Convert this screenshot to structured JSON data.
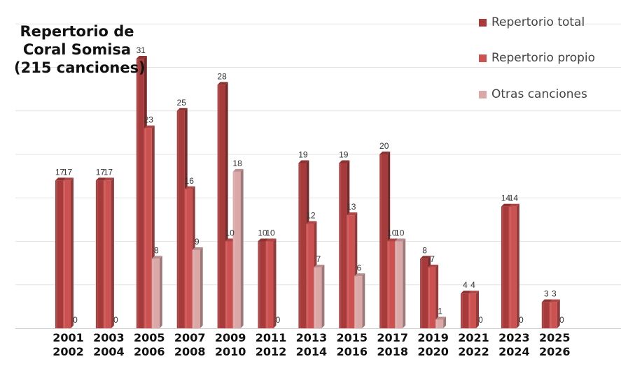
{
  "chart_data": {
    "type": "bar",
    "title_lines": [
      "Repertorio de",
      "Coral Somisa",
      "(215 canciones)"
    ],
    "categories": [
      [
        "2001",
        "2002"
      ],
      [
        "2003",
        "2004"
      ],
      [
        "2005",
        "2006"
      ],
      [
        "2007",
        "2008"
      ],
      [
        "2009",
        "2010"
      ],
      [
        "2011",
        "2012"
      ],
      [
        "2013",
        "2014"
      ],
      [
        "2015",
        "2016"
      ],
      [
        "2017",
        "2018"
      ],
      [
        "2019",
        "2020"
      ],
      [
        "2021",
        "2022"
      ],
      [
        "2023",
        "2024"
      ],
      [
        "2025",
        "2026"
      ]
    ],
    "series": [
      {
        "name": "Repertorio total",
        "color": "#a73a3a",
        "values": [
          17,
          17,
          31,
          25,
          28,
          10,
          19,
          19,
          20,
          8,
          4,
          14,
          3
        ]
      },
      {
        "name": "Repertorio propio",
        "color": "#cc5252",
        "values": [
          17,
          17,
          23,
          16,
          10,
          10,
          12,
          13,
          10,
          7,
          4,
          14,
          3
        ]
      },
      {
        "name": "Otras canciones",
        "color": "#dba8a8",
        "values": [
          0,
          0,
          8,
          9,
          18,
          0,
          7,
          6,
          10,
          1,
          0,
          0,
          0
        ]
      }
    ],
    "ylim": [
      0,
      35
    ],
    "grid": true,
    "legend_position": "top-right"
  }
}
